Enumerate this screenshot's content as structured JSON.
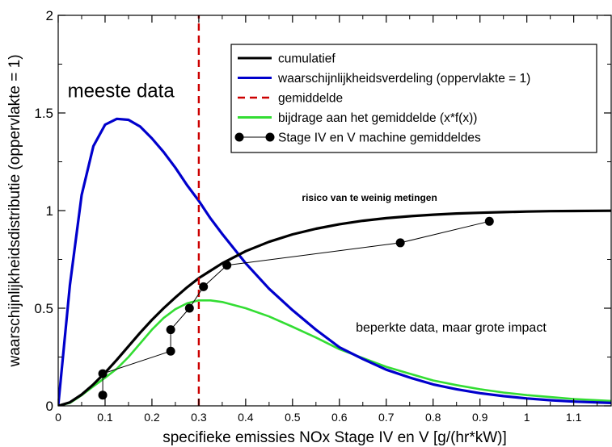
{
  "chart_data": {
    "type": "line",
    "title": "",
    "xlabel": "specifieke emissies NOx Stage IV en V [g/(hr*kW)]",
    "ylabel": "waarschijnlijkheidsdistributie (oppervlakte = 1)",
    "xlim": [
      0,
      1.18
    ],
    "ylim": [
      0,
      2
    ],
    "x_ticks": [
      0,
      0.1,
      0.2,
      0.3,
      0.4,
      0.5,
      0.6,
      0.7,
      0.8,
      0.9,
      1,
      1.1
    ],
    "x_tick_labels": [
      "0",
      "0.1",
      "0.2",
      "0.3",
      "0.4",
      "0.5",
      "0.6",
      "0.7",
      "0.8",
      "0.9",
      "1",
      "1.1"
    ],
    "y_ticks": [
      0,
      0.5,
      1,
      1.5,
      2
    ],
    "y_tick_labels": [
      "0",
      "0.5",
      "1",
      "1.5",
      "2"
    ],
    "grid": false,
    "legend_position": "top-right",
    "colors": {
      "cumulatief": "#000000",
      "verdeling": "#0000cc",
      "gemiddelde": "#cc0000",
      "bijdrage": "#33dd33",
      "machines": "#000000"
    },
    "series": [
      {
        "name": "cumulatief",
        "style": "solid",
        "x": [
          0,
          0.025,
          0.05,
          0.075,
          0.1,
          0.125,
          0.15,
          0.175,
          0.2,
          0.225,
          0.25,
          0.275,
          0.3,
          0.35,
          0.4,
          0.45,
          0.5,
          0.55,
          0.6,
          0.65,
          0.7,
          0.75,
          0.8,
          0.85,
          0.9,
          0.95,
          1.0,
          1.05,
          1.1,
          1.18
        ],
        "y": [
          0,
          0.018,
          0.058,
          0.11,
          0.17,
          0.236,
          0.305,
          0.375,
          0.44,
          0.5,
          0.555,
          0.607,
          0.654,
          0.73,
          0.792,
          0.84,
          0.878,
          0.907,
          0.93,
          0.948,
          0.961,
          0.971,
          0.979,
          0.985,
          0.989,
          0.992,
          0.995,
          0.997,
          0.998,
          0.999
        ]
      },
      {
        "name": "waarschijnlijkheidsverdeling (oppervlakte = 1)",
        "style": "solid",
        "x": [
          0,
          0.025,
          0.05,
          0.075,
          0.1,
          0.125,
          0.15,
          0.175,
          0.2,
          0.225,
          0.25,
          0.275,
          0.3,
          0.325,
          0.35,
          0.4,
          0.45,
          0.5,
          0.55,
          0.6,
          0.65,
          0.7,
          0.75,
          0.8,
          0.85,
          0.9,
          0.95,
          1.0,
          1.05,
          1.1,
          1.18
        ],
        "y": [
          0,
          0.62,
          1.08,
          1.33,
          1.44,
          1.47,
          1.465,
          1.43,
          1.37,
          1.3,
          1.22,
          1.13,
          1.05,
          0.96,
          0.88,
          0.73,
          0.6,
          0.49,
          0.39,
          0.3,
          0.24,
          0.185,
          0.145,
          0.11,
          0.085,
          0.065,
          0.05,
          0.038,
          0.029,
          0.022,
          0.015
        ]
      },
      {
        "name": "gemiddelde",
        "style": "dashed",
        "x": [
          0.3,
          0.3
        ],
        "y": [
          0,
          2
        ]
      },
      {
        "name": "bijdrage aan het gemiddelde (x*f(x))",
        "style": "solid",
        "x": [
          0,
          0.025,
          0.05,
          0.075,
          0.1,
          0.125,
          0.15,
          0.175,
          0.2,
          0.225,
          0.25,
          0.275,
          0.3,
          0.325,
          0.35,
          0.4,
          0.45,
          0.5,
          0.55,
          0.6,
          0.65,
          0.7,
          0.75,
          0.8,
          0.85,
          0.9,
          0.95,
          1.0,
          1.05,
          1.1,
          1.18
        ],
        "y": [
          0,
          0.015,
          0.054,
          0.1,
          0.144,
          0.19,
          0.25,
          0.32,
          0.39,
          0.45,
          0.495,
          0.525,
          0.54,
          0.54,
          0.532,
          0.5,
          0.458,
          0.405,
          0.35,
          0.29,
          0.245,
          0.2,
          0.165,
          0.13,
          0.106,
          0.085,
          0.068,
          0.055,
          0.045,
          0.035,
          0.025
        ]
      },
      {
        "name": "Stage IV en V machine gemiddeldes",
        "style": "points-lines",
        "x": [
          0.095,
          0.095,
          0.24,
          0.24,
          0.28,
          0.31,
          0.36,
          0.73,
          0.92
        ],
        "y": [
          0.055,
          0.165,
          0.28,
          0.39,
          0.5,
          0.61,
          0.72,
          0.835,
          0.945
        ]
      }
    ],
    "legend_items": [
      "cumulatief",
      "waarschijnlijkheidsverdeling (oppervlakte = 1)",
      "gemiddelde",
      "bijdrage aan het gemiddelde (x*f(x))",
      "Stage IV en V machine gemiddeldes"
    ],
    "annotations": [
      {
        "text": "meeste data",
        "x": 0.02,
        "y": 1.58,
        "size": "large",
        "bold": false
      },
      {
        "text": "risico van te weinig metingen",
        "x": 0.52,
        "y": 1.05,
        "size": "small",
        "bold": true
      },
      {
        "text": "beperkte data, maar grote impact",
        "x": 0.635,
        "y": 0.38,
        "size": "medium",
        "bold": false
      }
    ]
  }
}
